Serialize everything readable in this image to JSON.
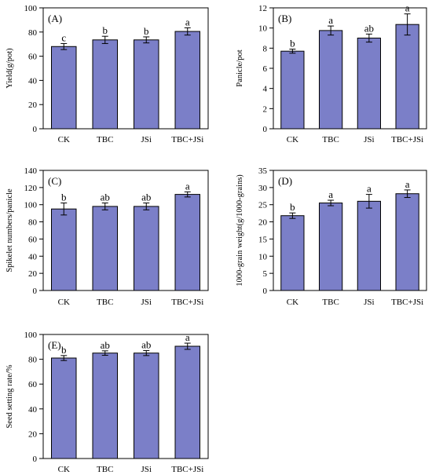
{
  "colors": {
    "bar_fill": "#7B7FC8",
    "bar_stroke": "#000000",
    "axis": "#000000"
  },
  "chart_data": [
    {
      "type": "bar",
      "panel_label": "(A)",
      "categories": [
        "CK",
        "TBC",
        "JSi",
        "TBC+JSi"
      ],
      "values": [
        68,
        73.5,
        73.5,
        80.5
      ],
      "errors": [
        2.5,
        3,
        2.5,
        3
      ],
      "letters": [
        "c",
        "b",
        "b",
        "a"
      ],
      "ylabel": "Yield(g/pot)",
      "ylim": [
        0,
        100
      ],
      "yticks": [
        0,
        20,
        40,
        60,
        80,
        100
      ]
    },
    {
      "type": "bar",
      "panel_label": "(B)",
      "categories": [
        "CK",
        "TBC",
        "JSi",
        "TBC+JSi"
      ],
      "values": [
        7.7,
        9.75,
        9.0,
        10.35
      ],
      "errors": [
        0.2,
        0.45,
        0.4,
        1.05
      ],
      "letters": [
        "b",
        "a",
        "ab",
        "a"
      ],
      "ylabel": "Panicle/pot",
      "ylim": [
        0,
        12
      ],
      "yticks": [
        0,
        2,
        4,
        6,
        8,
        10,
        12
      ]
    },
    {
      "type": "bar",
      "panel_label": "(C)",
      "categories": [
        "CK",
        "TBC",
        "JSi",
        "TBC+JSi"
      ],
      "values": [
        95,
        98,
        98,
        112
      ],
      "errors": [
        7,
        4,
        4,
        3
      ],
      "letters": [
        "b",
        "ab",
        "ab",
        "a"
      ],
      "ylabel": "Spikelet numbers/panicle",
      "ylim": [
        0,
        140
      ],
      "yticks": [
        0,
        20,
        40,
        60,
        80,
        100,
        120,
        140
      ]
    },
    {
      "type": "bar",
      "panel_label": "(D)",
      "categories": [
        "CK",
        "TBC",
        "JSi",
        "TBC+JSi"
      ],
      "values": [
        21.8,
        25.5,
        26.0,
        28.2
      ],
      "errors": [
        0.8,
        0.8,
        2.0,
        1.1
      ],
      "letters": [
        "b",
        "a",
        "a",
        "a"
      ],
      "ylabel": "1000-grain weight(g/1000-grains)",
      "ylim": [
        0,
        35
      ],
      "yticks": [
        0,
        5,
        10,
        15,
        20,
        25,
        30,
        35
      ]
    },
    {
      "type": "bar",
      "panel_label": "(E)",
      "categories": [
        "CK",
        "TBC",
        "JSi",
        "TBC+JSi"
      ],
      "values": [
        81,
        85,
        85,
        90.5
      ],
      "errors": [
        2,
        1.8,
        2,
        2.5
      ],
      "letters": [
        "b",
        "ab",
        "ab",
        "a"
      ],
      "ylabel": "Seed setting rate/%",
      "ylim": [
        0,
        100
      ],
      "yticks": [
        0,
        20,
        40,
        60,
        80,
        100
      ]
    }
  ]
}
